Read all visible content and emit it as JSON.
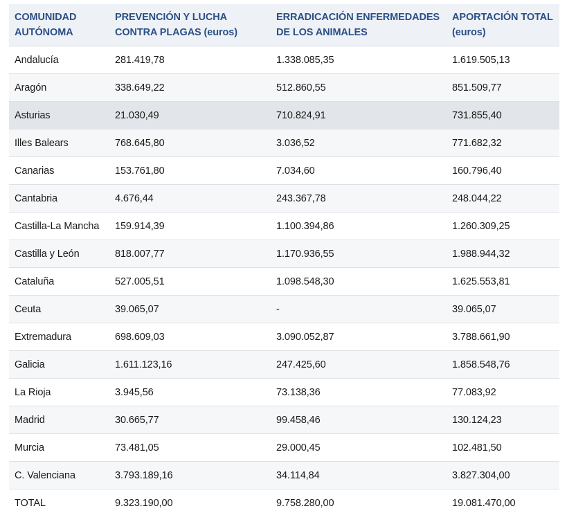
{
  "table": {
    "headers": [
      "COMUNIDAD AUTÓNOMA",
      "PREVENCIÓN Y LUCHA CONTRA PLAGAS (euros)",
      "ERRADICACIÓN ENFERMEDADES DE LOS ANIMALES",
      "APORTACIÓN TOTAL (euros)"
    ],
    "rows": [
      [
        "Andalucía",
        "281.419,78",
        "1.338.085,35",
        "1.619.505,13"
      ],
      [
        "Aragón",
        "338.649,22",
        "512.860,55",
        "851.509,77"
      ],
      [
        "Asturias",
        "21.030,49",
        "710.824,91",
        "731.855,40"
      ],
      [
        "Illes Balears",
        "768.645,80",
        "3.036,52",
        "771.682,32"
      ],
      [
        "Canarias",
        "153.761,80",
        "7.034,60",
        "160.796,40"
      ],
      [
        "Cantabria",
        "4.676,44",
        "243.367,78",
        "248.044,22"
      ],
      [
        "Castilla-La Mancha",
        "159.914,39",
        "1.100.394,86",
        "1.260.309,25"
      ],
      [
        "Castilla y León",
        "818.007,77",
        "1.170.936,55",
        "1.988.944,32"
      ],
      [
        "Cataluña",
        "527.005,51",
        "1.098.548,30",
        "1.625.553,81"
      ],
      [
        "Ceuta",
        "39.065,07",
        "-",
        "39.065,07"
      ],
      [
        "Extremadura",
        "698.609,03",
        "3.090.052,87",
        "3.788.661,90"
      ],
      [
        "Galicia",
        "1.611.123,16",
        "247.425,60",
        "1.858.548,76"
      ],
      [
        "La Rioja",
        "3.945,56",
        "73.138,36",
        "77.083,92"
      ],
      [
        "Madrid",
        "30.665,77",
        "99.458,46",
        "130.124,23"
      ],
      [
        "Murcia",
        "73.481,05",
        "29.000,45",
        "102.481,50"
      ],
      [
        "C. Valenciana",
        "3.793.189,16",
        "34.114,84",
        "3.827.304,00"
      ],
      [
        "TOTAL",
        "9.323.190,00",
        "9.758.280,00",
        "19.081.470,00"
      ]
    ]
  },
  "colors": {
    "header_text": "#2b4f86",
    "header_bg": "#eef2f6",
    "row_alt_bg": "#f6f7f9",
    "row_hover_bg": "#e2e5e9"
  }
}
